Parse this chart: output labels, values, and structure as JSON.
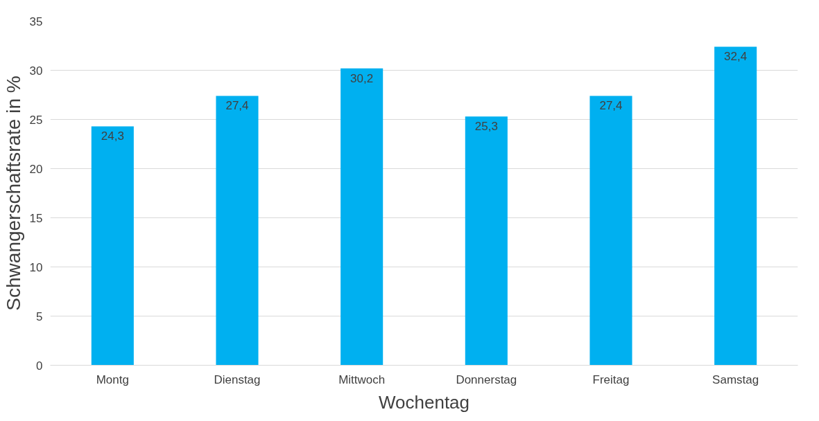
{
  "chart_data": {
    "type": "bar",
    "xlabel": "Wochentag",
    "ylabel": "Schwangerschaftsrate in %",
    "categories": [
      "Montg",
      "Dienstag",
      "Mittwoch",
      "Donnerstag",
      "Freitag",
      "Samstag"
    ],
    "values": [
      24.3,
      27.4,
      30.2,
      25.3,
      27.4,
      32.4
    ],
    "value_labels": [
      "24,3",
      "27,4",
      "30,2",
      "25,3",
      "27,4",
      "32,4"
    ],
    "color": "#00b0f0",
    "ylim": [
      0,
      35
    ],
    "yticks": [
      0,
      5,
      10,
      15,
      20,
      25,
      30,
      35
    ],
    "grid": "y"
  }
}
